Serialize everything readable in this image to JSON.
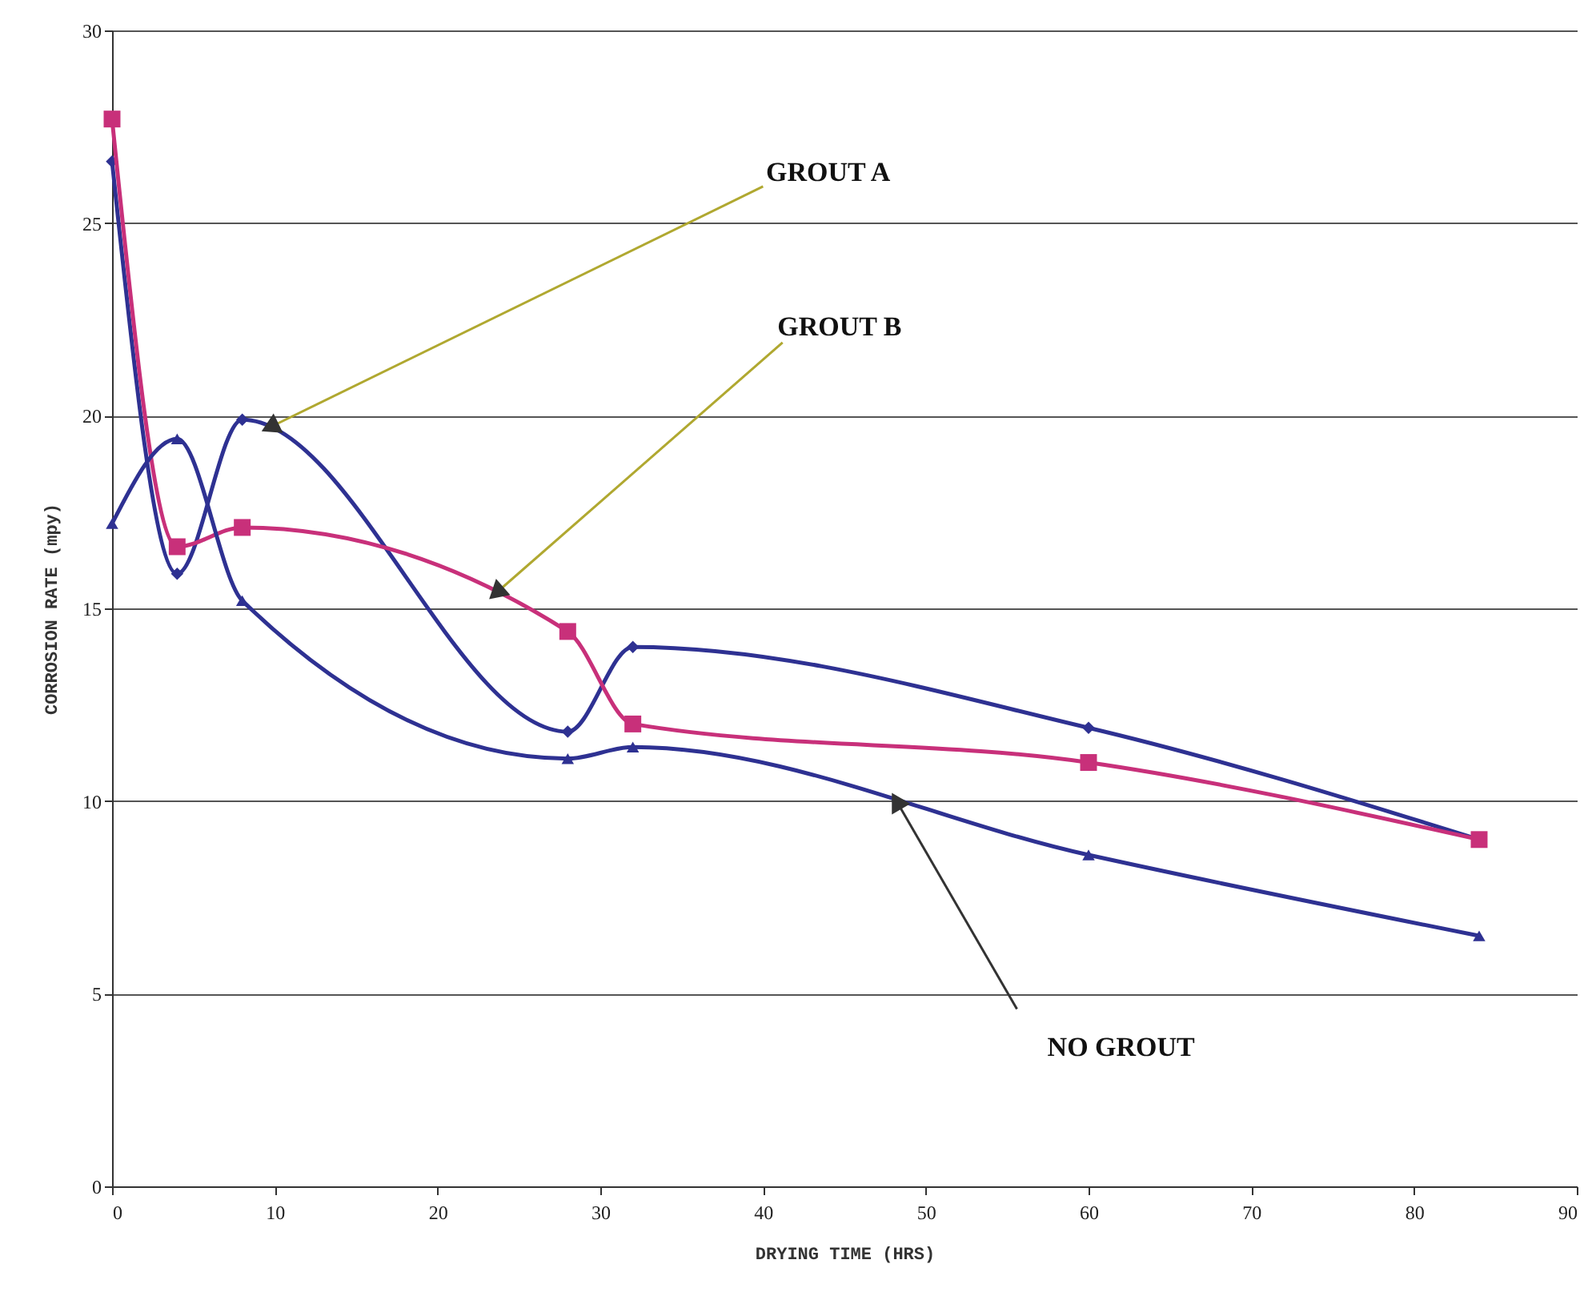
{
  "chart_data": {
    "type": "line",
    "xlabel": "DRYING TIME (HRS)",
    "ylabel": "CORROSION RATE (mpy)",
    "x": [
      0,
      4,
      8,
      28,
      32,
      60,
      84
    ],
    "series": [
      {
        "color": "#2e3192",
        "marker": "diamond",
        "values": [
          26.6,
          15.9,
          19.9,
          11.8,
          14.0,
          11.9,
          9.0
        ]
      },
      {
        "color": "#c8307a",
        "marker": "square",
        "values": [
          27.7,
          16.6,
          17.1,
          14.4,
          12.0,
          11.0,
          9.0
        ]
      },
      {
        "color": "#2e3192",
        "marker": "triangle",
        "values": [
          17.2,
          19.4,
          15.2,
          11.1,
          11.4,
          8.6,
          6.5
        ]
      }
    ],
    "annotations": [
      {
        "text": "GROUT A",
        "x": 9.7,
        "y": 19.7
      },
      {
        "text": "GROUT B",
        "x": 23.6,
        "y": 15.4
      },
      "NO GROUT"
    ],
    "xlim": [
      0,
      90
    ],
    "xticks": [
      0,
      10,
      20,
      30,
      40,
      50,
      60,
      70,
      80,
      90
    ],
    "ylim": [
      0,
      30
    ],
    "yticks": [
      0,
      5,
      10,
      15,
      20,
      25,
      30
    ],
    "grid": "y",
    "line_style": "solid"
  }
}
